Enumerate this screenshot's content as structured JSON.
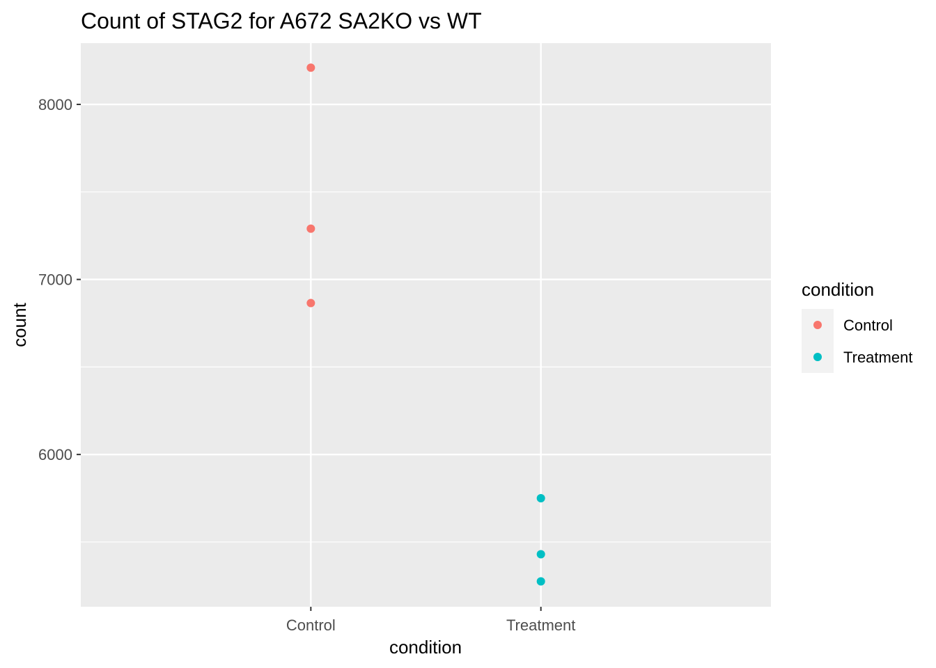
{
  "chart_data": {
    "type": "scatter",
    "title": "Count of STAG2 for A672 SA2KO vs WT",
    "xlabel": "condition",
    "ylabel": "count",
    "categories": [
      "Control",
      "Treatment"
    ],
    "ylim": [
      5130,
      8350
    ],
    "yticks": [
      6000,
      7000,
      8000
    ],
    "grid": true,
    "legend": {
      "title": "condition",
      "placement": "right",
      "entries": [
        "Control",
        "Treatment"
      ]
    },
    "series": [
      {
        "name": "Control",
        "color": "#F8766D",
        "x": [
          "Control",
          "Control",
          "Control"
        ],
        "values": [
          8210,
          7290,
          6865
        ]
      },
      {
        "name": "Treatment",
        "color": "#00BFC4",
        "x": [
          "Treatment",
          "Treatment",
          "Treatment"
        ],
        "values": [
          5750,
          5430,
          5275
        ]
      }
    ],
    "panel_background": "#EBEBEB",
    "grid_color": "#FFFFFF"
  }
}
